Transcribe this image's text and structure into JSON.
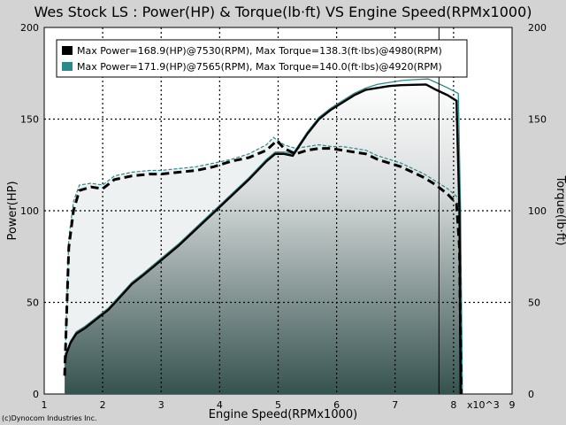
{
  "chart_data": {
    "type": "line",
    "title": "Wes Stock LS : Power(HP) & Torque(lb·ft) VS Engine Speed(RPMx1000)",
    "xlabel": "Engine Speed(RPMx1000)",
    "ylabel_left": "Power(HP)",
    "ylabel_right": "Torque(lb·ft)",
    "x_multiplier_label": "x10^3",
    "xlim": [
      1,
      9
    ],
    "ylim_left": [
      0,
      200
    ],
    "ylim_right": [
      0,
      200
    ],
    "x_ticks": [
      "1",
      "2",
      "3",
      "4",
      "5",
      "6",
      "7",
      "8",
      "9"
    ],
    "y_ticks_left": [
      "0",
      "50",
      "100",
      "150",
      "200"
    ],
    "y_ticks_right": [
      "0",
      "50",
      "100",
      "150",
      "200"
    ],
    "grid": true,
    "legend_position": "top-left",
    "marker_rpm": 7.75,
    "series": [
      {
        "name": "Max Power=168.9(HP)@7530(RPM), Max Torque=138.3(ft·lbs)@4980(RPM)",
        "color": "#000000",
        "power": {
          "x": [
            1.35,
            1.38,
            1.45,
            1.55,
            1.7,
            1.9,
            2.1,
            2.3,
            2.5,
            2.7,
            3.0,
            3.3,
            3.6,
            3.9,
            4.2,
            4.5,
            4.8,
            4.95,
            5.1,
            5.25,
            5.5,
            5.7,
            5.9,
            6.1,
            6.3,
            6.5,
            6.7,
            6.9,
            7.1,
            7.3,
            7.53,
            7.7,
            7.9,
            8.05,
            8.1,
            8.12
          ],
          "y": [
            17,
            22,
            28,
            33,
            36,
            41,
            46,
            53,
            60,
            65,
            73,
            81,
            90,
            99,
            108,
            117,
            127,
            131,
            131,
            130,
            142,
            150,
            155,
            159,
            163,
            166,
            167,
            168,
            168.5,
            168.7,
            168.9,
            166,
            163,
            160,
            100,
            0
          ]
        },
        "torque": {
          "x": [
            1.35,
            1.38,
            1.42,
            1.5,
            1.6,
            1.8,
            2.0,
            2.2,
            2.5,
            2.8,
            3.0,
            3.3,
            3.6,
            3.9,
            4.2,
            4.5,
            4.8,
            4.98,
            5.1,
            5.3,
            5.5,
            5.7,
            5.9,
            6.1,
            6.3,
            6.5,
            6.7,
            6.9,
            7.1,
            7.3,
            7.5,
            7.7,
            7.9,
            8.05,
            8.1,
            8.13
          ],
          "y": [
            10,
            40,
            80,
            100,
            111,
            113,
            112,
            117,
            119,
            120,
            120,
            121,
            122,
            124,
            127,
            129,
            133,
            138.3,
            134,
            131,
            133,
            134,
            134,
            133,
            132,
            131,
            128,
            126,
            124,
            121,
            118,
            114,
            109,
            104,
            80,
            0
          ]
        }
      },
      {
        "name": "Max Power=171.9(HP)@7565(RPM), Max Torque=140.0(ft·lbs)@4920(RPM)",
        "color": "#2a8a8a",
        "power": {
          "x": [
            1.35,
            1.38,
            1.45,
            1.55,
            1.7,
            1.9,
            2.1,
            2.3,
            2.5,
            2.7,
            3.0,
            3.3,
            3.6,
            3.9,
            4.2,
            4.5,
            4.8,
            4.95,
            5.1,
            5.25,
            5.5,
            5.7,
            5.9,
            6.1,
            6.3,
            6.5,
            6.7,
            6.9,
            7.1,
            7.3,
            7.565,
            7.7,
            7.9,
            8.08,
            8.12,
            8.15
          ],
          "y": [
            18,
            23,
            29,
            34,
            37,
            42,
            47,
            54,
            61,
            66,
            74,
            82,
            91,
            100,
            109,
            118,
            128,
            132,
            132,
            131,
            143,
            151,
            156,
            160,
            164,
            167,
            169,
            170,
            171,
            171.5,
            171.9,
            170,
            167,
            164,
            100,
            0
          ]
        },
        "torque": {
          "x": [
            1.35,
            1.38,
            1.42,
            1.5,
            1.6,
            1.8,
            2.0,
            2.2,
            2.5,
            2.8,
            3.0,
            3.3,
            3.6,
            3.9,
            4.2,
            4.5,
            4.8,
            4.92,
            5.1,
            5.3,
            5.5,
            5.7,
            5.9,
            6.1,
            6.3,
            6.5,
            6.7,
            6.9,
            7.1,
            7.3,
            7.5,
            7.7,
            7.9,
            8.08,
            8.12,
            8.15
          ],
          "y": [
            12,
            42,
            85,
            105,
            114,
            115,
            114,
            119,
            121,
            122,
            122,
            123,
            124,
            126,
            128,
            131,
            136,
            140,
            136,
            134,
            135,
            136,
            135,
            135,
            134,
            133,
            130,
            128,
            126,
            123,
            120,
            116,
            112,
            107,
            80,
            0
          ]
        }
      }
    ]
  },
  "copyright": "(c)Dynocom Industries Inc."
}
